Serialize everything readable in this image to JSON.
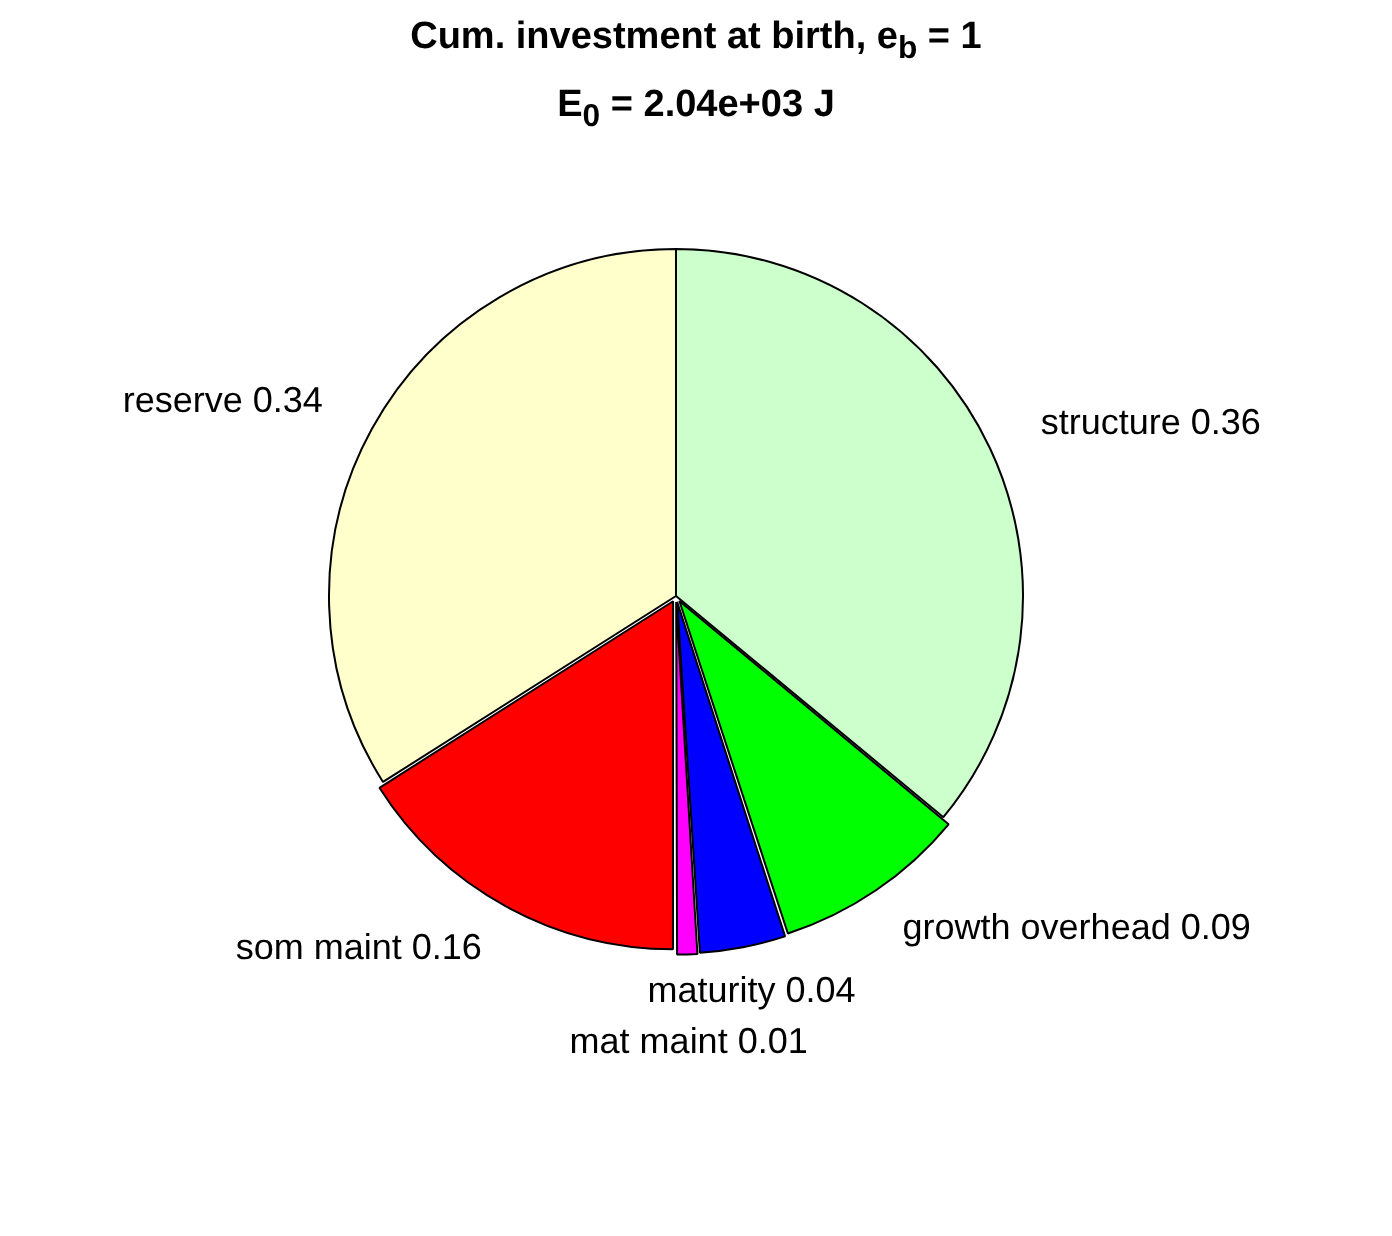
{
  "chart_data": {
    "type": "pie",
    "title": "Cum. investment at birth, e$_{b}$ = 1",
    "subtitle": "E$_{0}$ = 2.04e+03 J",
    "categories": [
      "structure 0.36",
      "growth overhead 0.09",
      "maturity 0.04",
      "mat maint 0.01",
      "som maint 0.16",
      "reserve 0.34"
    ],
    "values": [
      0.36,
      0.09,
      0.04,
      0.01,
      0.16,
      0.34
    ],
    "colors": [
      "#ccffcc",
      "#00ff00",
      "#0000ff",
      "#ff00ff",
      "#ff0000",
      "#ffffcc"
    ],
    "legend": false
  }
}
